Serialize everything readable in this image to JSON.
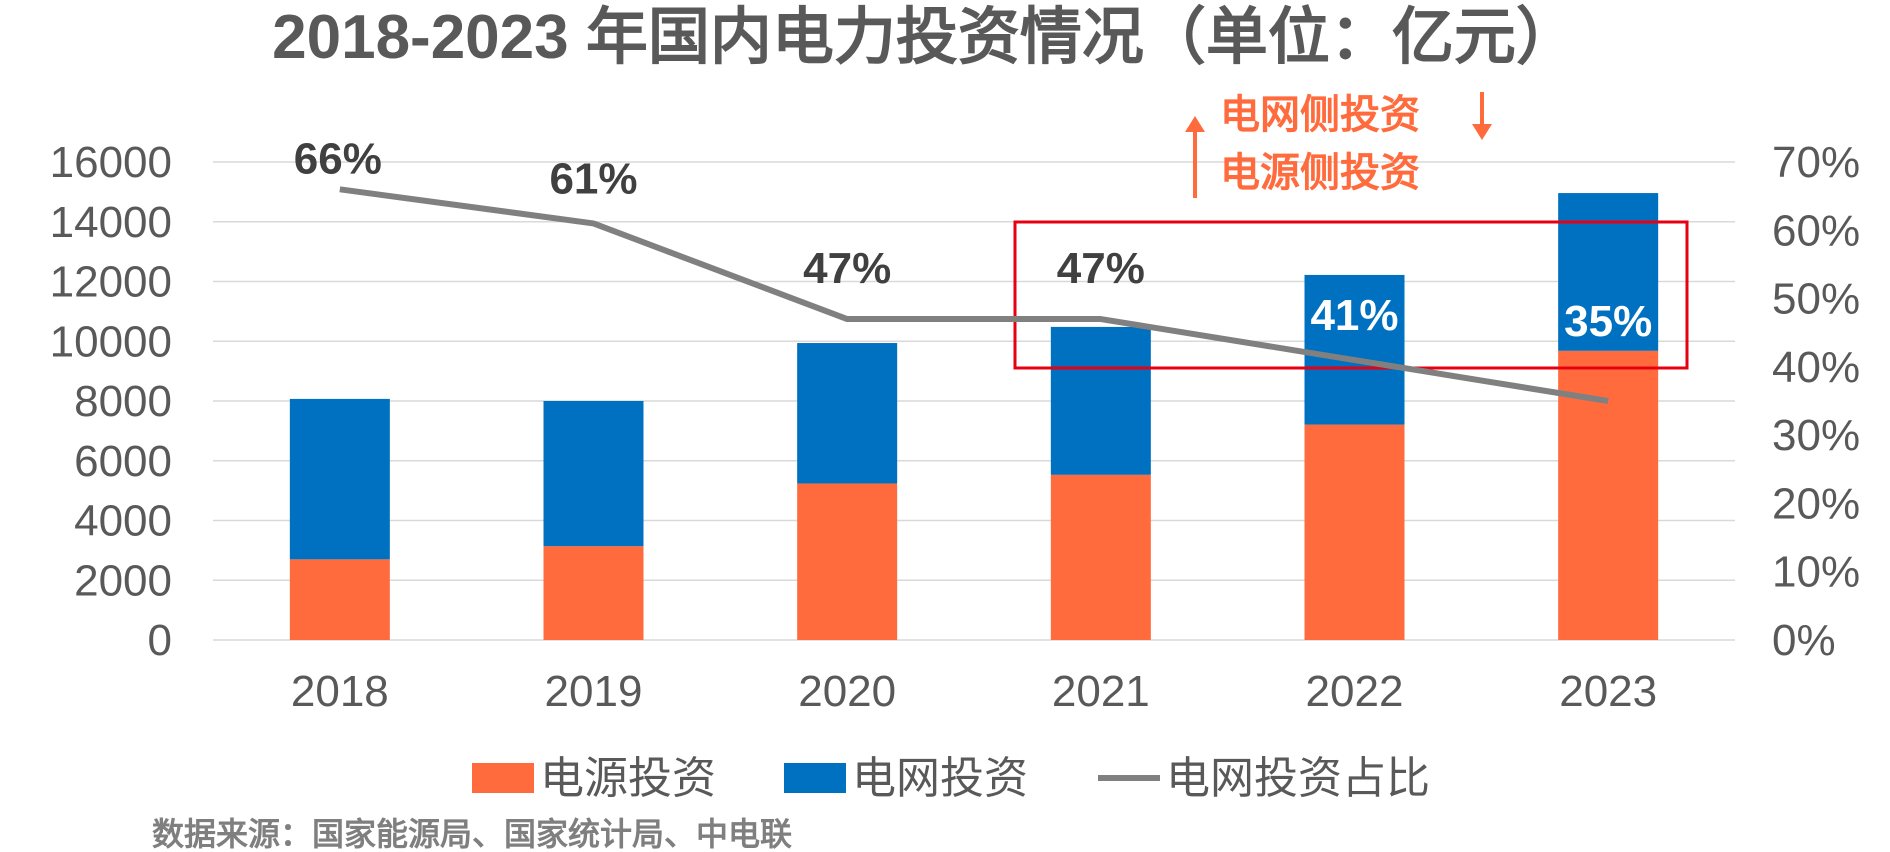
{
  "chart_data": {
    "type": "bar",
    "stacked": true,
    "title": "2018-2023 年国内电力投资情况（单位：亿元）",
    "categories": [
      "2018",
      "2019",
      "2020",
      "2021",
      "2022",
      "2023"
    ],
    "series": [
      {
        "name": "电源投资",
        "values": [
          2700,
          3140,
          5240,
          5530,
          7210,
          9680
        ],
        "color": "#ff6b3d"
      },
      {
        "name": "电网投资",
        "values": [
          5370,
          4860,
          4700,
          4950,
          5010,
          5280
        ],
        "color": "#0070c0"
      }
    ],
    "line_series": {
      "name": "电网投资占比",
      "values": [
        0.66,
        0.61,
        0.47,
        0.47,
        0.41,
        0.35
      ],
      "labels": [
        "66%",
        "61%",
        "47%",
        "47%",
        "41%",
        "35%"
      ],
      "color": "#808080"
    },
    "y_left": {
      "min": 0,
      "max": 16000,
      "ticks": [
        "0",
        "2000",
        "4000",
        "6000",
        "8000",
        "10000",
        "12000",
        "14000",
        "16000"
      ]
    },
    "y_right": {
      "min": 0,
      "max": 0.7,
      "ticks": [
        "0%",
        "10%",
        "20%",
        "30%",
        "40%",
        "50%",
        "60%",
        "70%"
      ]
    },
    "grid": true,
    "legend_position": "bottom",
    "annotations": {
      "grid_side": "电网侧投资",
      "source_side": "电源侧投资",
      "highlight_color": "#e60012",
      "accent": "#ff6b3d"
    },
    "source": "数据来源：国家能源局、国家统计局、中电联"
  }
}
